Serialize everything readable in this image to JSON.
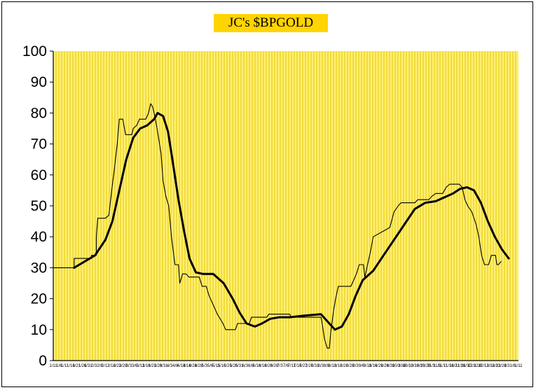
{
  "colors": {
    "plot_bg": "#FFEF75",
    "grid": "#E4C800",
    "title_bg": "#FFD400",
    "line": "#000000"
  },
  "chart_data": {
    "type": "line",
    "title": "JC's $BPGOLD",
    "xlabel": "",
    "ylabel": "",
    "ylim": [
      0,
      100
    ],
    "y_ticks": [
      0,
      10,
      20,
      30,
      40,
      50,
      60,
      70,
      80,
      90,
      100
    ],
    "x_tick_labels": [
      "1/11",
      "1/6",
      "1/11",
      "1/16",
      "1/21",
      "1/26",
      "1/31",
      "2/3",
      "2/8",
      "2/12",
      "2/18",
      "2/23",
      "2/28",
      "3/3",
      "3/6",
      "3/11",
      "3/16",
      "3/21",
      "3/26",
      "3/31",
      "4/3",
      "4/8",
      "4/13",
      "4/18",
      "4/23",
      "4/28",
      "5/3",
      "5/6",
      "5/11",
      "5/16",
      "5/21",
      "5/26",
      "5/31",
      "6/3",
      "6/8",
      "6/13",
      "6/18",
      "6/23",
      "6/28",
      "7/3",
      "7/6",
      "7/11",
      "7/16",
      "7/21",
      "7/26",
      "7/31",
      "8/3",
      "8/8",
      "8/13",
      "8/18",
      "8/23",
      "8/28",
      "9/3",
      "9/6",
      "9/11",
      "9/16",
      "9/21",
      "9/26",
      "9/30",
      "10/3",
      "10/8",
      "10/13",
      "10/18",
      "10/23",
      "10/28",
      "11/3",
      "11/6",
      "11/11",
      "11/16",
      "11/21",
      "11/26",
      "11/30",
      "12/3",
      "12/8",
      "12/13",
      "12/18",
      "12/23",
      "12/28",
      "1/3",
      "1/6",
      "1/11"
    ],
    "x_count": 670,
    "grid": true,
    "legend": "none",
    "series": [
      {
        "style": "thin",
        "points": [
          [
            0,
            30
          ],
          [
            30,
            30
          ],
          [
            30,
            33
          ],
          [
            55,
            33
          ],
          [
            55,
            34
          ],
          [
            62,
            34
          ],
          [
            62,
            40
          ],
          [
            64,
            46
          ],
          [
            75,
            46
          ],
          [
            80,
            47
          ],
          [
            84,
            55
          ],
          [
            88,
            62
          ],
          [
            92,
            70
          ],
          [
            95,
            78
          ],
          [
            100,
            78
          ],
          [
            104,
            73
          ],
          [
            113,
            73
          ],
          [
            115,
            75
          ],
          [
            120,
            76
          ],
          [
            124,
            78
          ],
          [
            133,
            78
          ],
          [
            137,
            80
          ],
          [
            140,
            83
          ],
          [
            143,
            82
          ],
          [
            146,
            79
          ],
          [
            150,
            74
          ],
          [
            155,
            67
          ],
          [
            158,
            58
          ],
          [
            162,
            53
          ],
          [
            166,
            50
          ],
          [
            170,
            40
          ],
          [
            175,
            31
          ],
          [
            180,
            31
          ],
          [
            182,
            25
          ],
          [
            186,
            28
          ],
          [
            191,
            28
          ],
          [
            195,
            27
          ],
          [
            210,
            27
          ],
          [
            214,
            24
          ],
          [
            220,
            24
          ],
          [
            224,
            21
          ],
          [
            230,
            18
          ],
          [
            236,
            15
          ],
          [
            244,
            12
          ],
          [
            248,
            10
          ],
          [
            262,
            10
          ],
          [
            265,
            12
          ],
          [
            282,
            12
          ],
          [
            285,
            14
          ],
          [
            307,
            14
          ],
          [
            310,
            15
          ],
          [
            340,
            15
          ],
          [
            342,
            14
          ],
          [
            385,
            14
          ],
          [
            386,
            13
          ],
          [
            390,
            7
          ],
          [
            394,
            4
          ],
          [
            397,
            4
          ],
          [
            399,
            9
          ],
          [
            403,
            16
          ],
          [
            406,
            20
          ],
          [
            410,
            24
          ],
          [
            428,
            24
          ],
          [
            432,
            26
          ],
          [
            436,
            28
          ],
          [
            440,
            31
          ],
          [
            446,
            31
          ],
          [
            448,
            27
          ],
          [
            452,
            31
          ],
          [
            456,
            35
          ],
          [
            460,
            40
          ],
          [
            476,
            42
          ],
          [
            484,
            43
          ],
          [
            490,
            48
          ],
          [
            496,
            50
          ],
          [
            500,
            51
          ],
          [
            520,
            51
          ],
          [
            524,
            52
          ],
          [
            540,
            52
          ],
          [
            544,
            53
          ],
          [
            550,
            54
          ],
          [
            560,
            54
          ],
          [
            565,
            56
          ],
          [
            570,
            57
          ],
          [
            584,
            57
          ],
          [
            588,
            56
          ],
          [
            592,
            52
          ],
          [
            596,
            50
          ],
          [
            602,
            48
          ],
          [
            608,
            44
          ],
          [
            612,
            40
          ],
          [
            616,
            34
          ],
          [
            620,
            31
          ],
          [
            626,
            31
          ],
          [
            630,
            34
          ],
          [
            636,
            34
          ],
          [
            638,
            31
          ],
          [
            640,
            31
          ],
          [
            644,
            32
          ]
        ]
      },
      {
        "style": "thick",
        "points": [
          [
            30,
            30
          ],
          [
            45,
            32
          ],
          [
            60,
            34
          ],
          [
            75,
            39
          ],
          [
            85,
            45
          ],
          [
            95,
            55
          ],
          [
            105,
            65
          ],
          [
            115,
            72
          ],
          [
            125,
            75
          ],
          [
            135,
            76
          ],
          [
            145,
            78
          ],
          [
            150,
            80
          ],
          [
            158,
            79
          ],
          [
            165,
            74
          ],
          [
            172,
            64
          ],
          [
            180,
            52
          ],
          [
            188,
            42
          ],
          [
            196,
            33
          ],
          [
            205,
            28.5
          ],
          [
            215,
            28
          ],
          [
            230,
            28
          ],
          [
            245,
            25
          ],
          [
            258,
            20
          ],
          [
            268,
            15.5
          ],
          [
            278,
            12
          ],
          [
            290,
            11
          ],
          [
            300,
            12
          ],
          [
            312,
            13.5
          ],
          [
            325,
            14
          ],
          [
            340,
            14
          ],
          [
            360,
            14.5
          ],
          [
            385,
            15
          ],
          [
            395,
            12.5
          ],
          [
            405,
            10
          ],
          [
            415,
            11
          ],
          [
            425,
            15
          ],
          [
            435,
            21
          ],
          [
            445,
            26
          ],
          [
            460,
            29
          ],
          [
            475,
            34
          ],
          [
            490,
            39
          ],
          [
            505,
            44
          ],
          [
            520,
            49
          ],
          [
            535,
            51
          ],
          [
            550,
            51.5
          ],
          [
            565,
            53
          ],
          [
            575,
            54
          ],
          [
            585,
            55.5
          ],
          [
            595,
            56
          ],
          [
            605,
            55
          ],
          [
            615,
            51
          ],
          [
            625,
            45
          ],
          [
            635,
            40
          ],
          [
            645,
            36
          ],
          [
            655,
            33
          ]
        ]
      }
    ]
  }
}
